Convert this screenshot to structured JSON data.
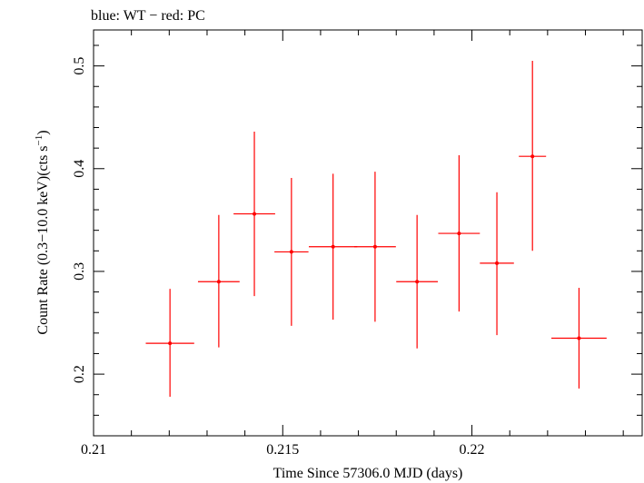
{
  "header": {
    "legend_text": "blue: WT − red: PC"
  },
  "chart_data": {
    "type": "scatter",
    "title": "",
    "xlabel": "Time Since 57306.0 MJD (days)",
    "ylabel_main": "Count Rate (0.3−10.0 keV)(cts s",
    "ylabel_sup": "−1",
    "ylabel_close": ")",
    "xlim": [
      0.21,
      0.2245
    ],
    "ylim": [
      0.14,
      0.535
    ],
    "x_ticks": [
      0.21,
      0.215,
      0.22
    ],
    "x_tick_labels": [
      "0.21",
      "0.215",
      "0.22"
    ],
    "y_ticks": [
      0.2,
      0.3,
      0.4,
      0.5
    ],
    "y_tick_labels": [
      "0.2",
      "0.3",
      "0.4",
      "0.5"
    ],
    "grid": false,
    "series": [
      {
        "name": "PC",
        "color": "#ff0000",
        "points": [
          {
            "x": 0.21202,
            "xerr": 0.00064,
            "y": 0.23,
            "ylo": 0.178,
            "yhi": 0.283
          },
          {
            "x": 0.21331,
            "xerr": 0.00055,
            "y": 0.29,
            "ylo": 0.226,
            "yhi": 0.355
          },
          {
            "x": 0.21425,
            "xerr": 0.00055,
            "y": 0.356,
            "ylo": 0.276,
            "yhi": 0.436
          },
          {
            "x": 0.21523,
            "xerr": 0.00045,
            "y": 0.319,
            "ylo": 0.247,
            "yhi": 0.391
          },
          {
            "x": 0.21633,
            "xerr": 0.00064,
            "y": 0.324,
            "ylo": 0.253,
            "yhi": 0.395
          },
          {
            "x": 0.21744,
            "xerr": 0.00055,
            "y": 0.324,
            "ylo": 0.251,
            "yhi": 0.397
          },
          {
            "x": 0.21855,
            "xerr": 0.00055,
            "y": 0.29,
            "ylo": 0.225,
            "yhi": 0.355
          },
          {
            "x": 0.21966,
            "xerr": 0.00055,
            "y": 0.337,
            "ylo": 0.261,
            "yhi": 0.413
          },
          {
            "x": 0.22066,
            "xerr": 0.00045,
            "y": 0.308,
            "ylo": 0.238,
            "yhi": 0.377
          },
          {
            "x": 0.2216,
            "xerr": 0.00036,
            "y": 0.412,
            "ylo": 0.32,
            "yhi": 0.505
          },
          {
            "x": 0.22283,
            "xerr": 0.00073,
            "y": 0.235,
            "ylo": 0.186,
            "yhi": 0.284
          }
        ]
      }
    ]
  }
}
